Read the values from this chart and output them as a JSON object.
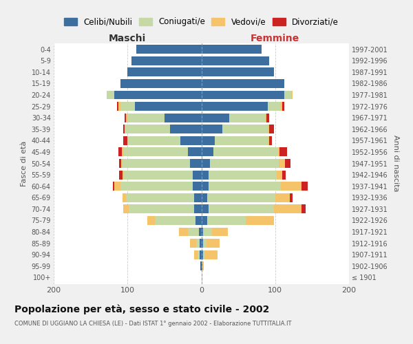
{
  "age_groups": [
    "100+",
    "95-99",
    "90-94",
    "85-89",
    "80-84",
    "75-79",
    "70-74",
    "65-69",
    "60-64",
    "55-59",
    "50-54",
    "45-49",
    "40-44",
    "35-39",
    "30-34",
    "25-29",
    "20-24",
    "15-19",
    "10-14",
    "5-9",
    "0-4"
  ],
  "birth_years": [
    "≤ 1901",
    "1902-1906",
    "1907-1911",
    "1912-1916",
    "1917-1921",
    "1922-1926",
    "1927-1931",
    "1932-1936",
    "1937-1941",
    "1942-1946",
    "1947-1951",
    "1952-1956",
    "1957-1961",
    "1962-1966",
    "1967-1971",
    "1972-1976",
    "1977-1981",
    "1982-1986",
    "1987-1991",
    "1992-1996",
    "1997-2001"
  ],
  "male_celibi": [
    0,
    1,
    2,
    2,
    3,
    8,
    10,
    10,
    12,
    12,
    15,
    18,
    28,
    42,
    50,
    90,
    118,
    110,
    100,
    95,
    88
  ],
  "male_coniugati": [
    0,
    0,
    3,
    5,
    15,
    55,
    88,
    92,
    98,
    93,
    92,
    88,
    72,
    62,
    50,
    20,
    10,
    0,
    0,
    0,
    0
  ],
  "male_vedovi": [
    0,
    0,
    5,
    8,
    12,
    10,
    8,
    5,
    8,
    2,
    2,
    2,
    0,
    0,
    2,
    2,
    0,
    0,
    0,
    0,
    0
  ],
  "male_divorziati": [
    0,
    0,
    0,
    0,
    0,
    0,
    0,
    0,
    2,
    4,
    2,
    4,
    6,
    2,
    2,
    2,
    0,
    0,
    0,
    0,
    0
  ],
  "female_nubili": [
    0,
    1,
    2,
    2,
    2,
    8,
    10,
    8,
    10,
    10,
    12,
    16,
    18,
    28,
    38,
    90,
    112,
    112,
    98,
    92,
    82
  ],
  "female_coniugate": [
    0,
    0,
    2,
    5,
    12,
    52,
    88,
    92,
    98,
    92,
    93,
    88,
    72,
    62,
    48,
    18,
    10,
    0,
    0,
    0,
    0
  ],
  "female_vedove": [
    0,
    2,
    18,
    18,
    22,
    38,
    38,
    20,
    28,
    8,
    8,
    2,
    2,
    2,
    2,
    2,
    2,
    0,
    0,
    0,
    0
  ],
  "female_divorziate": [
    0,
    0,
    0,
    0,
    0,
    0,
    5,
    4,
    8,
    4,
    8,
    10,
    4,
    6,
    4,
    2,
    0,
    0,
    0,
    0,
    0
  ],
  "colors": {
    "celibi": "#3c6fa0",
    "coniugati": "#c5d9a5",
    "vedovi": "#f5c46a",
    "divorziati": "#cc2222"
  },
  "xlim": 200,
  "title": "Popolazione per età, sesso e stato civile - 2002",
  "subtitle": "COMUNE DI UGGIANO LA CHIESA (LE) - Dati ISTAT 1° gennaio 2002 - Elaborazione TUTTITALIA.IT",
  "xlabel_left": "Maschi",
  "xlabel_right": "Femmine",
  "ylabel_left": "Fasce di età",
  "ylabel_right": "Anni di nascita",
  "bg_color": "#f0f0f0",
  "plot_bg_color": "#ffffff",
  "grid_color": "#cccccc",
  "legend_labels": [
    "Celibi/Nubili",
    "Coniugati/e",
    "Vedovi/e",
    "Divorziati/e"
  ]
}
